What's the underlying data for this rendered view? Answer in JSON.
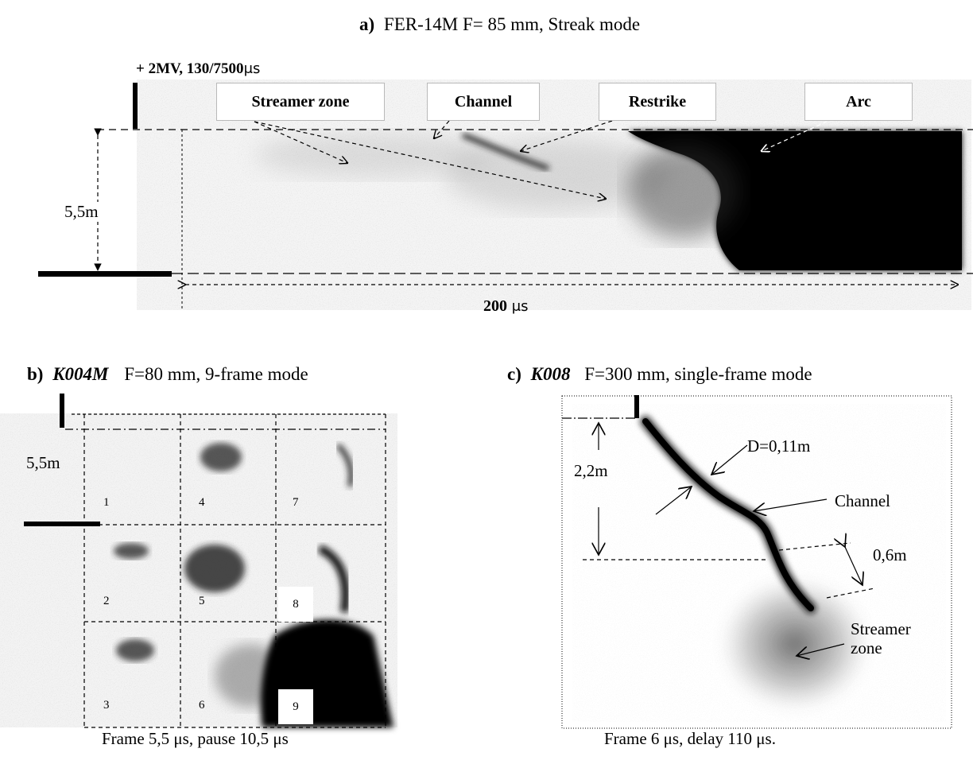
{
  "panel_a": {
    "letter": "a)",
    "title": "FER-14M   F= 85 mm, Streak mode",
    "voltage": "+ 2MV, 130/7500",
    "voltage_unit": "μs",
    "labels": {
      "streamer_zone": "Streamer zone",
      "channel": "Channel",
      "restrike": "Restrike",
      "arc": "Arc"
    },
    "gap_length": "5,5m",
    "time_value": "200",
    "time_unit": " μs"
  },
  "panel_b": {
    "letter": "b)",
    "camera": "K004M",
    "settings": "F=80 mm, 9-frame mode",
    "gap_length": "5,5m",
    "frame_numbers": [
      "1",
      "2",
      "3",
      "4",
      "5",
      "6",
      "7",
      "8",
      "9"
    ],
    "caption": "Frame 5,5 μs, pause 10,5 μs"
  },
  "panel_c": {
    "letter": "c)",
    "camera": "K008",
    "settings": "F=300 mm,   single-frame mode",
    "length": "2,2m",
    "diameter": "D=0,11m",
    "channel": "Channel",
    "segment": "0,6m",
    "streamer_zone_line1": "Streamer",
    "streamer_zone_line2": "zone",
    "caption": "Frame 6 μs, delay 110 μs."
  }
}
